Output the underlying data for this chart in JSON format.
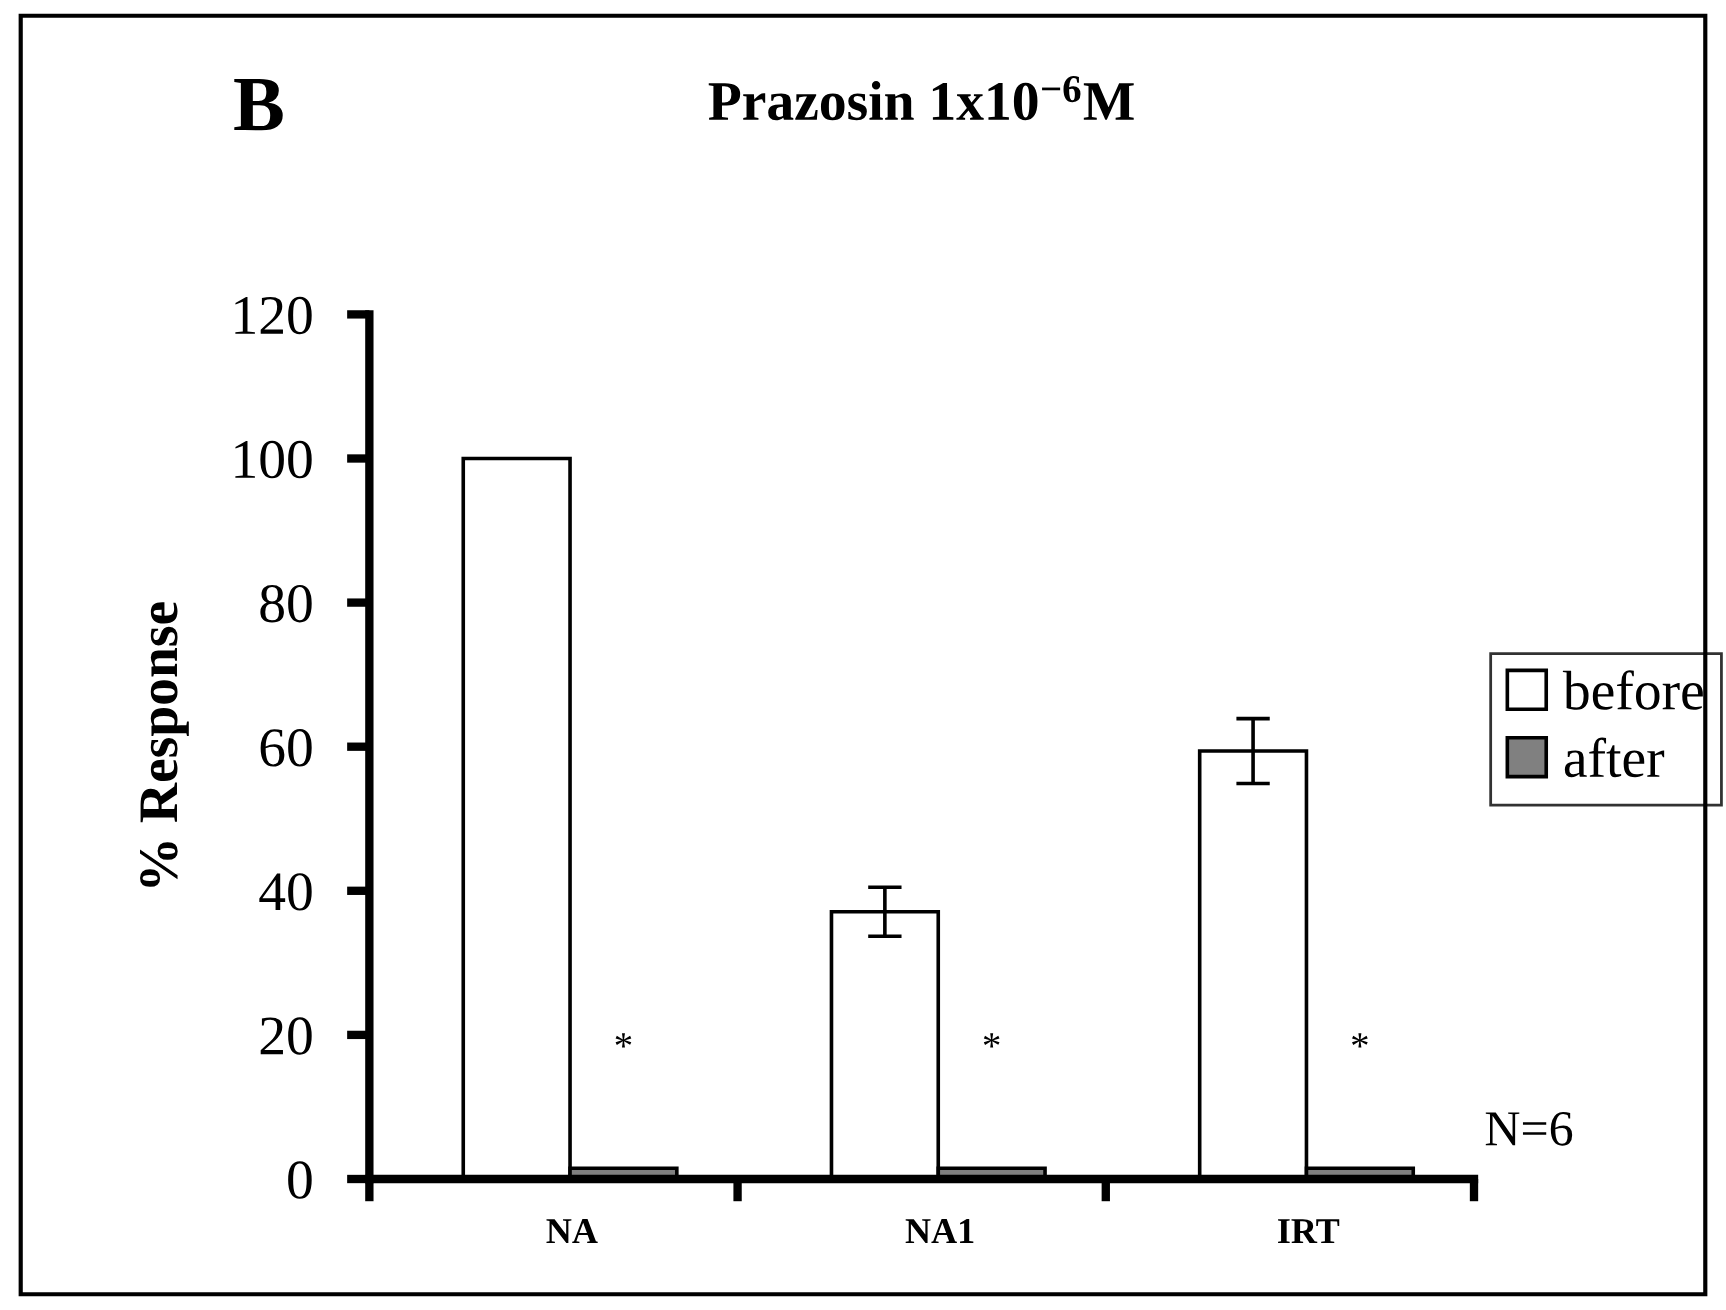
{
  "chart_data": {
    "type": "bar",
    "title": "Prazosin 1x10$^{−6}$M",
    "ylabel": "% Response",
    "categories": [
      "NA",
      "NA1",
      "IRT"
    ],
    "series": [
      {
        "name": "before",
        "color": "#ffffff",
        "values": [
          100,
          37.1,
          59.4
        ],
        "errors": [
          null,
          3.4,
          4.5
        ]
      },
      {
        "name": "after",
        "color": "#808080",
        "values": [
          1.5,
          1.5,
          1.5
        ]
      }
    ],
    "ylim": [
      0,
      120
    ],
    "yticks": [
      0,
      20,
      40,
      60,
      80,
      100,
      120
    ],
    "grid": false,
    "legend": "right",
    "annotations": [
      "B",
      {
        "text": "*",
        "x": "NA",
        "y": 18
      },
      {
        "text": "*",
        "x": "NA1",
        "y": 18
      },
      {
        "text": "*",
        "x": "IRT",
        "y": 18
      },
      "N=6"
    ]
  }
}
